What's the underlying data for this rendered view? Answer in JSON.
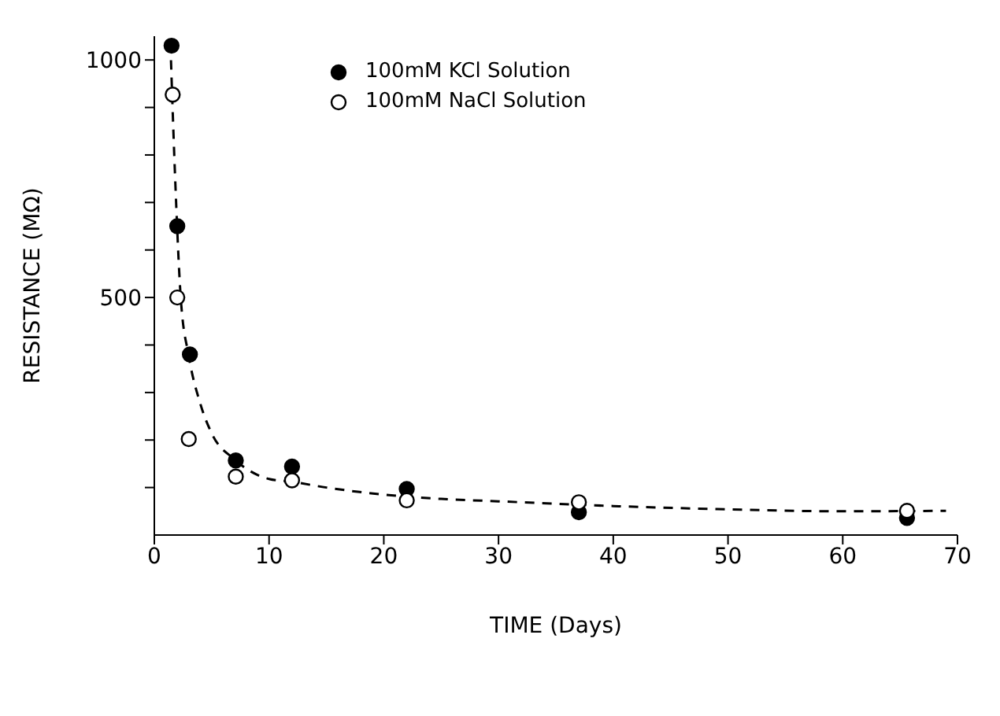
{
  "chart_data": {
    "type": "scatter",
    "xlabel": "TIME (Days)",
    "ylabel": "RESISTANCE (MΩ)",
    "xlim": [
      0,
      70
    ],
    "xticks": [
      0,
      10,
      20,
      30,
      40,
      50,
      60,
      70
    ],
    "ylim": [
      0,
      1050
    ],
    "yticks": [
      {
        "value": 100,
        "label": null
      },
      {
        "value": 200,
        "label": null
      },
      {
        "value": 300,
        "label": null
      },
      {
        "value": 400,
        "label": null
      },
      500,
      {
        "value": 600,
        "label": null
      },
      {
        "value": 700,
        "label": null
      },
      {
        "value": 800,
        "label": null
      },
      {
        "value": 900,
        "label": null
      },
      1000
    ],
    "legend": "top",
    "marker": "circle",
    "series": [
      {
        "name": "100mM KCl Solution",
        "color": "#000000",
        "x": [
          1.5,
          2.0,
          3.1,
          7.1,
          12,
          22,
          37,
          65.6
        ],
        "values": [
          1030,
          650,
          380,
          157,
          144,
          97,
          48,
          36
        ]
      },
      {
        "name": "100mM NaCl Solution",
        "color": "#ffffff",
        "x": [
          1.6,
          2.0,
          3.0,
          7.1,
          12,
          22,
          37,
          65.6
        ],
        "values": [
          927,
          500,
          202,
          123,
          115,
          73,
          69,
          51
        ]
      },
      {
        "type": "line",
        "line_style": "dashed",
        "marker": "none",
        "color": "#000000",
        "x": [
          1.4,
          1.8,
          2.3,
          3,
          4,
          5,
          7,
          10,
          12,
          15,
          20,
          25,
          30,
          40,
          50,
          60,
          69
        ],
        "values": [
          1036,
          760,
          500,
          377,
          277,
          214,
          159,
          118,
          112,
          100,
          85,
          76,
          71,
          61,
          54,
          50,
          51
        ]
      }
    ]
  }
}
